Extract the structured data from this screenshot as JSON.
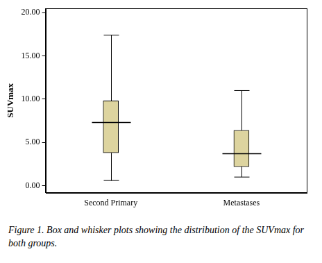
{
  "chart_data": {
    "type": "boxplot",
    "y_label": "SUVmax",
    "caption": "Figure 1. Box and whisker plots showing the distribution of the SUVmax for both groups.",
    "categories": [
      "Second Primary",
      "Metastases"
    ],
    "stats": [
      {
        "min": 0.6,
        "q1": 3.8,
        "median": 7.3,
        "q3": 9.8,
        "max": 17.4
      },
      {
        "min": 1.0,
        "q1": 2.2,
        "median": 3.7,
        "q3": 6.4,
        "max": 11.0
      }
    ],
    "color": "#ddd49f",
    "ylim": [
      -0.8,
      20.5
    ],
    "yticks": [
      {
        "value": 0,
        "label": "0.00"
      },
      {
        "value": 5,
        "label": "5.00"
      },
      {
        "value": 10,
        "label": "10.00"
      },
      {
        "value": 15,
        "label": "15.00"
      },
      {
        "value": 20,
        "label": "20.00"
      }
    ],
    "grid": false
  }
}
